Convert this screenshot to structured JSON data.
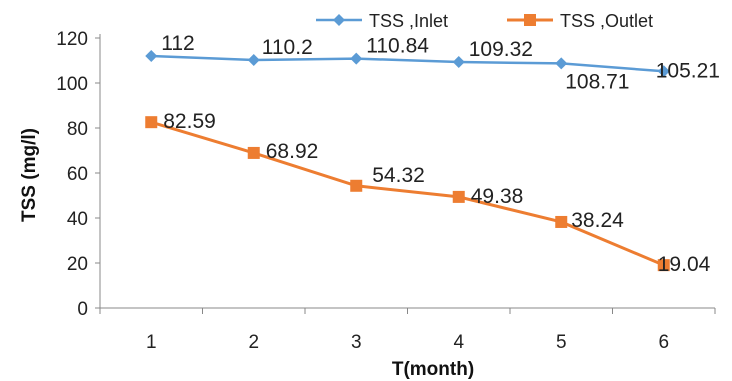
{
  "chart_data": {
    "type": "line",
    "x": [
      1,
      2,
      3,
      4,
      5,
      6
    ],
    "xlabel": "T(month)",
    "ylabel": "TSS (mg/l)",
    "ylim": [
      0,
      120
    ],
    "yticks": [
      0,
      20,
      40,
      60,
      80,
      100,
      120
    ],
    "grid": false,
    "legend_position": "top-right",
    "series": [
      {
        "name": "TSS ,Inlet",
        "color": "#5b9bd5",
        "marker": "diamond",
        "values": [
          112,
          110.2,
          110.84,
          109.32,
          108.71,
          105.21
        ],
        "labels": [
          "112",
          "110.2",
          "110.84",
          "109.32",
          "108.71",
          "105.21"
        ]
      },
      {
        "name": "TSS ,Outlet",
        "color": "#ed7d31",
        "marker": "square",
        "values": [
          82.59,
          68.92,
          54.32,
          49.38,
          38.24,
          19.04
        ],
        "labels": [
          "82.59",
          "68.92",
          "54.32",
          "49.38",
          "38.24",
          "19.04"
        ]
      }
    ]
  }
}
